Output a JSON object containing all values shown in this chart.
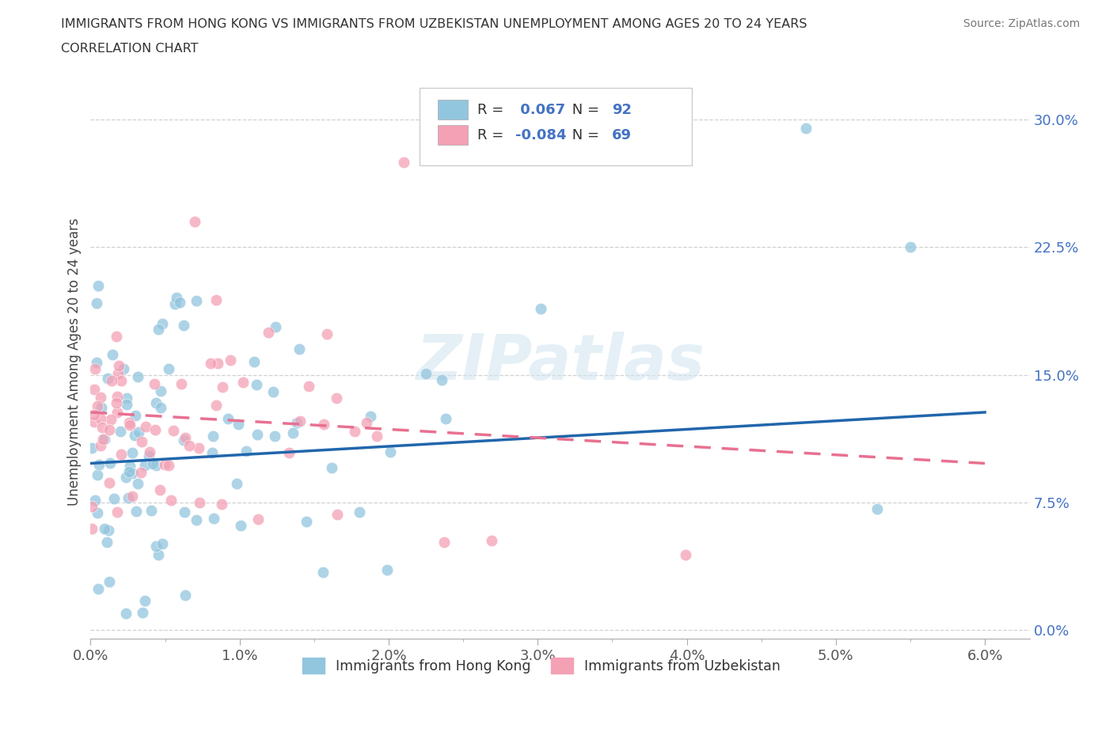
{
  "title_line1": "IMMIGRANTS FROM HONG KONG VS IMMIGRANTS FROM UZBEKISTAN UNEMPLOYMENT AMONG AGES 20 TO 24 YEARS",
  "title_line2": "CORRELATION CHART",
  "source_text": "Source: ZipAtlas.com",
  "ylabel": "Unemployment Among Ages 20 to 24 years",
  "xlim": [
    0.0,
    0.063
  ],
  "ylim": [
    -0.005,
    0.32
  ],
  "yticks": [
    0.0,
    0.075,
    0.15,
    0.225,
    0.3
  ],
  "ytick_labels": [
    "0.0%",
    "7.5%",
    "15.0%",
    "22.5%",
    "30.0%"
  ],
  "xticks": [
    0.0,
    0.01,
    0.02,
    0.03,
    0.04,
    0.05,
    0.06
  ],
  "xtick_labels": [
    "0.0%",
    "1.0%",
    "2.0%",
    "3.0%",
    "4.0%",
    "5.0%",
    "6.0%"
  ],
  "hk_R": 0.067,
  "hk_N": 92,
  "uz_R": -0.084,
  "uz_N": 69,
  "hk_color": "#92c5de",
  "uz_color": "#f4a0b5",
  "hk_line_color": "#2166ac",
  "uz_line_color": "#e87090",
  "hk_line_y0": 0.098,
  "hk_line_y1": 0.128,
  "uz_line_y0": 0.128,
  "uz_line_y1": 0.098,
  "legend_label_hk": "Immigrants from Hong Kong",
  "legend_label_uz": "Immigrants from Uzbekistan",
  "watermark": "ZIPatlas",
  "background_color": "#ffffff",
  "hk_seed": 77,
  "uz_seed": 88
}
